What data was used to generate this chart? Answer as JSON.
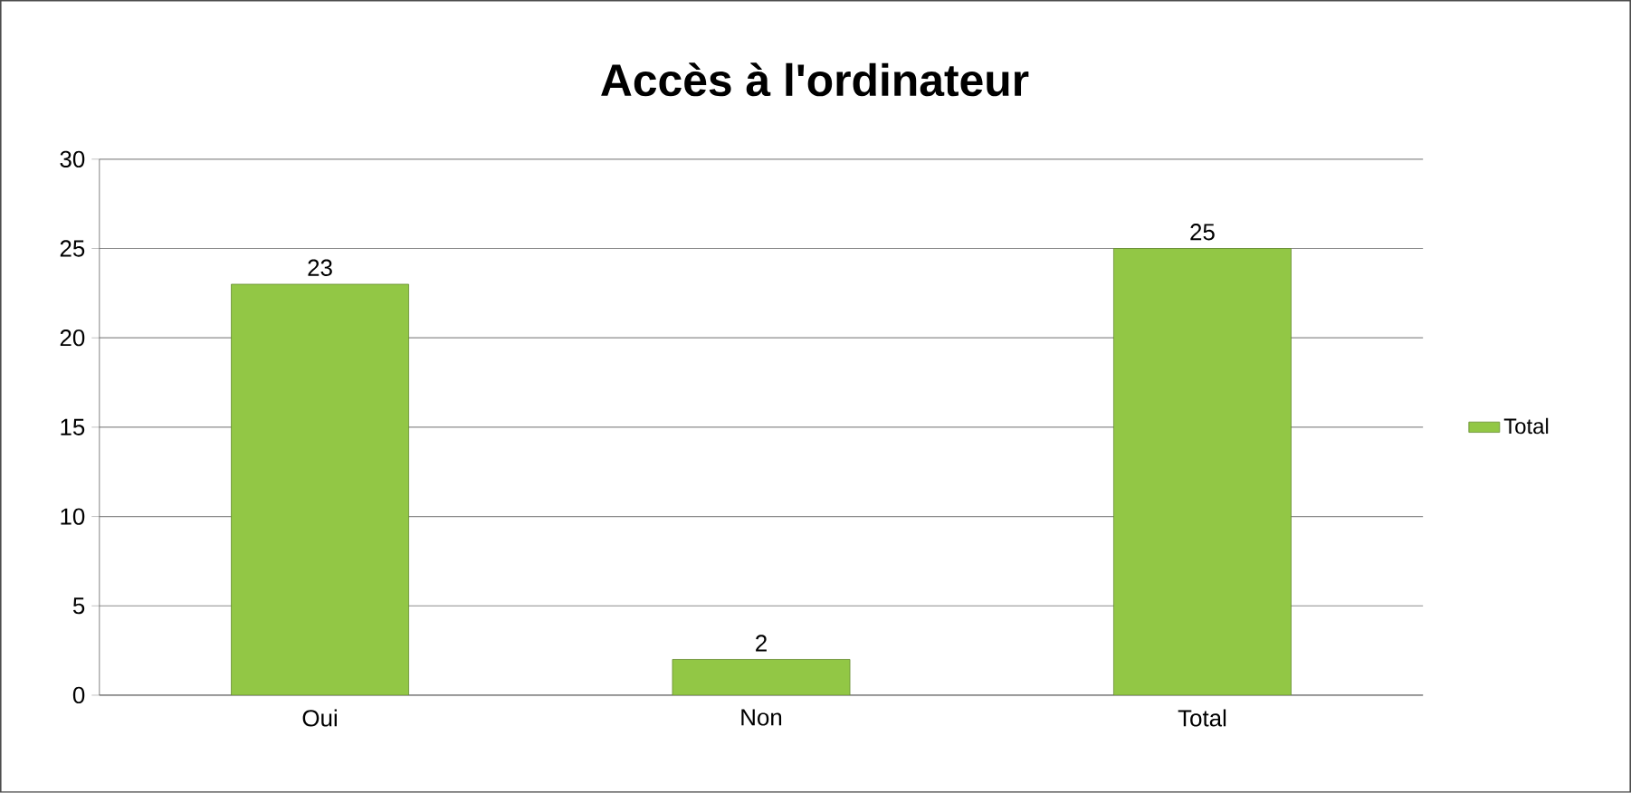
{
  "chart_data": {
    "type": "bar",
    "title": "Accès à l'ordinateur",
    "categories": [
      "Oui",
      "Non",
      "Total"
    ],
    "series": [
      {
        "name": "Total",
        "color": "#92c745",
        "values": [
          23,
          2,
          25
        ]
      }
    ],
    "ylim": [
      0,
      30
    ],
    "yticks": [
      0,
      5,
      10,
      15,
      20,
      25,
      30
    ],
    "grid": "y",
    "legend": "right",
    "data_labels": true
  }
}
